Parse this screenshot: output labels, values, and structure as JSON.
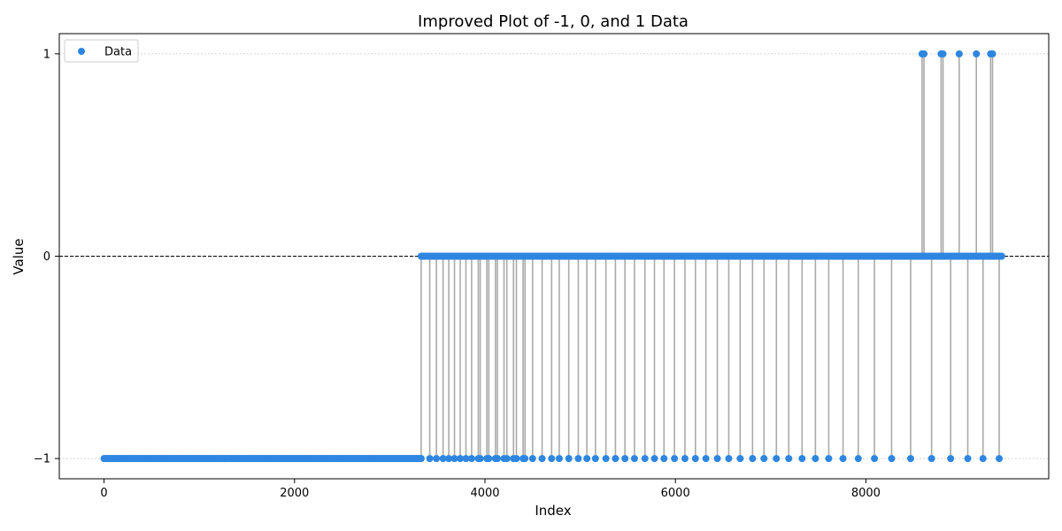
{
  "chart_data": {
    "type": "scatter",
    "title": "Improved Plot of -1, 0, and 1 Data",
    "xlabel": "Index",
    "ylabel": "Value",
    "xlim": [
      -470,
      9920
    ],
    "ylim": [
      -1.1,
      1.1
    ],
    "xticks": [
      0,
      2000,
      4000,
      6000,
      8000
    ],
    "xtick_labels": [
      "0",
      "2000",
      "4000",
      "6000",
      "8000"
    ],
    "yticks": [
      -1,
      0,
      1
    ],
    "ytick_labels": [
      "−1",
      "0",
      "1"
    ],
    "grid": "horizontal dotted",
    "reference_line": 0,
    "legend": {
      "placement": "top-left",
      "entries": [
        "Data"
      ]
    },
    "colors": {
      "points": "#2e86e0",
      "stems": "#aaaaaa",
      "reference": "#000000",
      "grid": "#c8c8c8"
    },
    "series": [
      {
        "name": "Data",
        "segments": [
          {
            "value": -1,
            "x_start": 0,
            "x_end": 3330,
            "step": 12
          },
          {
            "value": 0,
            "x_start": 3330,
            "x_end": 9430,
            "step": 12
          }
        ],
        "points": [
          {
            "x": 3330,
            "y": -1
          },
          {
            "x": 3420,
            "y": -1
          },
          {
            "x": 3490,
            "y": -1
          },
          {
            "x": 3560,
            "y": -1
          },
          {
            "x": 3620,
            "y": -1
          },
          {
            "x": 3680,
            "y": -1
          },
          {
            "x": 3740,
            "y": -1
          },
          {
            "x": 3800,
            "y": -1
          },
          {
            "x": 3860,
            "y": -1
          },
          {
            "x": 3930,
            "y": -1
          },
          {
            "x": 3950,
            "y": -1
          },
          {
            "x": 4020,
            "y": -1
          },
          {
            "x": 4040,
            "y": -1
          },
          {
            "x": 4110,
            "y": -1
          },
          {
            "x": 4130,
            "y": -1
          },
          {
            "x": 4200,
            "y": -1
          },
          {
            "x": 4230,
            "y": -1
          },
          {
            "x": 4300,
            "y": -1
          },
          {
            "x": 4330,
            "y": -1
          },
          {
            "x": 4400,
            "y": -1
          },
          {
            "x": 4420,
            "y": -1
          },
          {
            "x": 4500,
            "y": -1
          },
          {
            "x": 4600,
            "y": -1
          },
          {
            "x": 4700,
            "y": -1
          },
          {
            "x": 4780,
            "y": -1
          },
          {
            "x": 4880,
            "y": -1
          },
          {
            "x": 4980,
            "y": -1
          },
          {
            "x": 5070,
            "y": -1
          },
          {
            "x": 5160,
            "y": -1
          },
          {
            "x": 5270,
            "y": -1
          },
          {
            "x": 5370,
            "y": -1
          },
          {
            "x": 5470,
            "y": -1
          },
          {
            "x": 5570,
            "y": -1
          },
          {
            "x": 5680,
            "y": -1
          },
          {
            "x": 5780,
            "y": -1
          },
          {
            "x": 5880,
            "y": -1
          },
          {
            "x": 5990,
            "y": -1
          },
          {
            "x": 6100,
            "y": -1
          },
          {
            "x": 6210,
            "y": -1
          },
          {
            "x": 6320,
            "y": -1
          },
          {
            "x": 6440,
            "y": -1
          },
          {
            "x": 6560,
            "y": -1
          },
          {
            "x": 6680,
            "y": -1
          },
          {
            "x": 6810,
            "y": -1
          },
          {
            "x": 6930,
            "y": -1
          },
          {
            "x": 7060,
            "y": -1
          },
          {
            "x": 7190,
            "y": -1
          },
          {
            "x": 7330,
            "y": -1
          },
          {
            "x": 7470,
            "y": -1
          },
          {
            "x": 7610,
            "y": -1
          },
          {
            "x": 7760,
            "y": -1
          },
          {
            "x": 7920,
            "y": -1
          },
          {
            "x": 8090,
            "y": -1
          },
          {
            "x": 8270,
            "y": -1
          },
          {
            "x": 8470,
            "y": -1
          },
          {
            "x": 8690,
            "y": -1
          },
          {
            "x": 8890,
            "y": -1
          },
          {
            "x": 9070,
            "y": -1
          },
          {
            "x": 9230,
            "y": -1
          },
          {
            "x": 9400,
            "y": -1
          },
          {
            "x": 8590,
            "y": 1
          },
          {
            "x": 8610,
            "y": 1
          },
          {
            "x": 8790,
            "y": 1
          },
          {
            "x": 8810,
            "y": 1
          },
          {
            "x": 8980,
            "y": 1
          },
          {
            "x": 9160,
            "y": 1
          },
          {
            "x": 9310,
            "y": 1
          },
          {
            "x": 9330,
            "y": 1
          }
        ]
      }
    ]
  }
}
